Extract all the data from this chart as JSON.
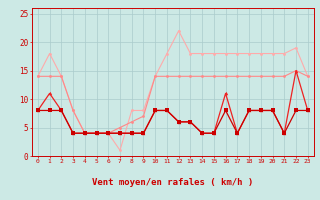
{
  "x": [
    0,
    1,
    2,
    3,
    4,
    5,
    6,
    7,
    8,
    9,
    10,
    11,
    12,
    13,
    14,
    15,
    16,
    17,
    18,
    19,
    20,
    21,
    22,
    23
  ],
  "line_rafales": [
    14,
    18,
    14,
    8,
    4,
    4,
    4,
    1,
    8,
    8,
    14,
    18,
    22,
    18,
    18,
    18,
    18,
    18,
    18,
    18,
    18,
    18,
    19,
    14
  ],
  "line_moyen_upper": [
    14,
    14,
    14,
    8,
    4,
    4,
    4,
    5,
    6,
    7,
    14,
    14,
    14,
    14,
    14,
    14,
    14,
    14,
    14,
    14,
    14,
    14,
    15,
    14
  ],
  "line_moyen_lower": [
    8,
    11,
    8,
    4,
    4,
    4,
    4,
    4,
    4,
    4,
    8,
    8,
    6,
    6,
    4,
    4,
    11,
    4,
    8,
    8,
    8,
    4,
    15,
    8
  ],
  "line_flat": [
    8,
    8,
    8,
    4,
    4,
    4,
    4,
    4,
    4,
    4,
    8,
    8,
    6,
    6,
    4,
    4,
    8,
    4,
    8,
    8,
    8,
    4,
    8,
    8
  ],
  "bg_color": "#cce9e5",
  "grid_color": "#aacccc",
  "color_rafales": "#ffaaaa",
  "color_moyen_upper": "#ff8888",
  "color_moyen_lower": "#ee2222",
  "color_flat": "#cc0000",
  "xlabel": "Vent moyen/en rafales ( km/h )",
  "xlabel_color": "#cc0000",
  "tick_color": "#cc0000",
  "spine_color": "#cc0000",
  "ylim": [
    0,
    26
  ],
  "yticks": [
    0,
    5,
    10,
    15,
    20,
    25
  ],
  "arrows": [
    "→",
    "→",
    "→",
    "↘",
    "↙",
    "↗",
    "↗",
    "↑",
    "↑",
    "↙",
    "→",
    "→",
    "↘",
    "→",
    "↓",
    "↓",
    "↘",
    "↓",
    "↓",
    "↓",
    "↓",
    "↘",
    "↘",
    "↘"
  ]
}
